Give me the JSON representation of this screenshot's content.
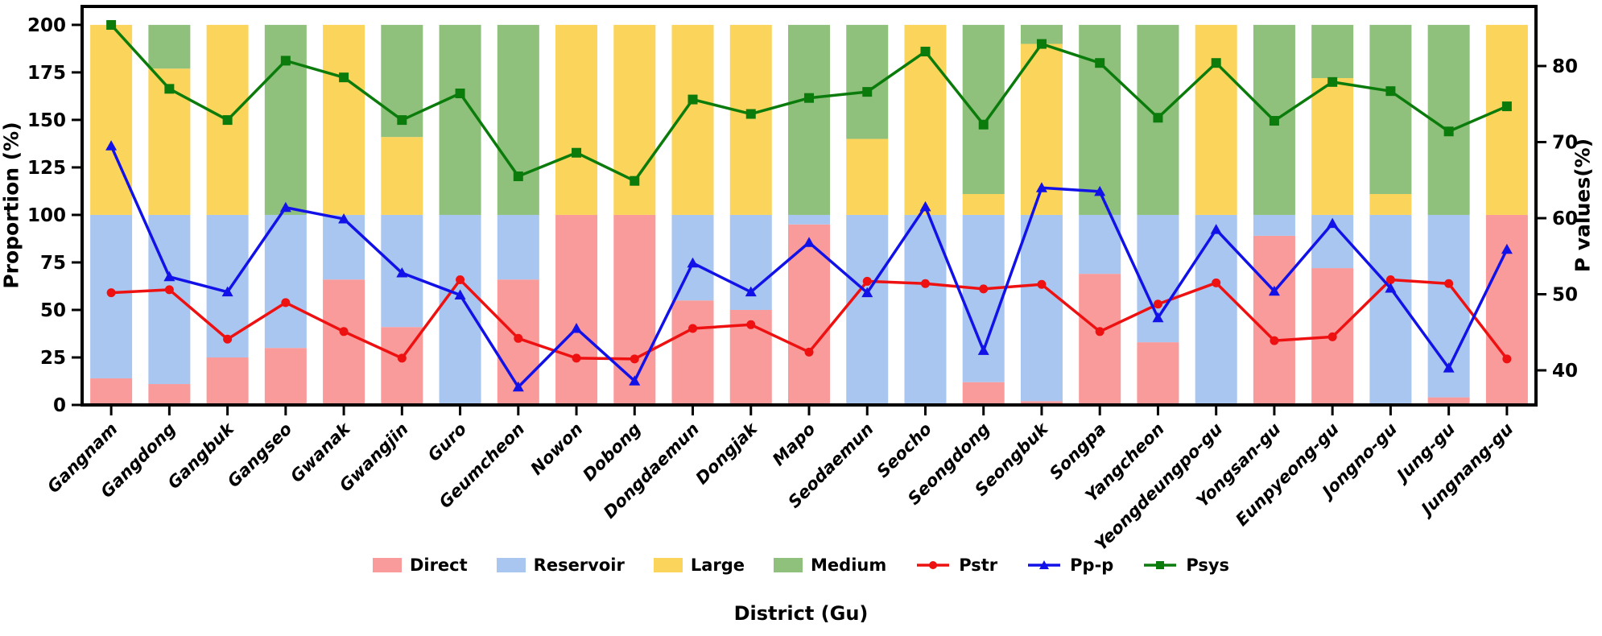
{
  "chart_data": {
    "type": "bar+line",
    "title": "",
    "xlabel": "District (Gu)",
    "ylabel_left": "Proportion (%)",
    "ylabel_right": "P values(%)",
    "legend_position": "bottom-center",
    "grid": false,
    "categories": [
      "Gangnam",
      "Gangdong",
      "Gangbuk",
      "Gangseo",
      "Gwanak",
      "Gwangjin",
      "Guro",
      "Geumcheon",
      "Nowon",
      "Dobong",
      "Dongdaemun",
      "Dongjak",
      "Mapo",
      "Seodaemun",
      "Seocho",
      "Seongdong",
      "Seongbuk",
      "Songpa",
      "Yangcheon",
      "Yeongdeungpo-gu",
      "Yongsan-gu",
      "Eunpyeong-gu",
      "Jongno-gu",
      "Jung-gu",
      "Jungnang-gu"
    ],
    "bar_series": [
      {
        "name": "Direct",
        "color": "#FA9B9B",
        "stack": "lower",
        "values": [
          14,
          11,
          25,
          30,
          66,
          41,
          0,
          66,
          100,
          100,
          55,
          50,
          95,
          0,
          0,
          12,
          2,
          69,
          33,
          0,
          89,
          72,
          0,
          4,
          100
        ]
      },
      {
        "name": "Reservoir",
        "color": "#A9C6F0",
        "stack": "lower",
        "values": [
          86,
          89,
          75,
          70,
          34,
          59,
          100,
          34,
          0,
          0,
          45,
          50,
          5,
          100,
          100,
          88,
          98,
          31,
          67,
          100,
          11,
          28,
          100,
          96,
          0
        ]
      },
      {
        "name": "Large",
        "color": "#FBD45C",
        "stack": "upper",
        "values": [
          100,
          77,
          100,
          0,
          100,
          41,
          0,
          0,
          100,
          100,
          100,
          100,
          0,
          40,
          100,
          11,
          90,
          0,
          0,
          100,
          0,
          72,
          11,
          0,
          100
        ]
      },
      {
        "name": "Medium",
        "color": "#8FC17D",
        "stack": "upper",
        "values": [
          0,
          23,
          0,
          100,
          0,
          59,
          100,
          100,
          0,
          0,
          0,
          0,
          100,
          60,
          0,
          89,
          10,
          100,
          100,
          0,
          100,
          28,
          89,
          100,
          0
        ]
      }
    ],
    "line_series": [
      {
        "name": "Pstr",
        "color": "#EE1111",
        "marker": "circle",
        "axis": "right",
        "values": [
          50.2,
          50.6,
          44.1,
          48.9,
          45.1,
          41.6,
          51.9,
          44.2,
          41.6,
          41.5,
          45.5,
          46.0,
          42.4,
          51.7,
          51.4,
          50.7,
          51.3,
          45.1,
          48.7,
          51.5,
          43.9,
          44.4,
          51.9,
          51.4,
          41.5
        ]
      },
      {
        "name": "Pp-p",
        "color": "#1212E8",
        "marker": "triangle",
        "axis": "right",
        "values": [
          69.5,
          52.3,
          50.3,
          61.4,
          59.9,
          52.8,
          49.9,
          37.8,
          45.5,
          38.6,
          54.1,
          50.3,
          56.8,
          50.2,
          61.5,
          42.6,
          64.0,
          63.5,
          46.9,
          58.5,
          50.4,
          59.3,
          50.8,
          40.3,
          55.9
        ]
      },
      {
        "name": "Psys",
        "color": "#0B7C0B",
        "marker": "square",
        "axis": "right",
        "values": [
          85.4,
          77.0,
          72.9,
          80.7,
          78.5,
          72.9,
          76.4,
          65.5,
          68.6,
          64.9,
          75.6,
          73.7,
          75.8,
          76.6,
          81.9,
          72.3,
          82.9,
          80.4,
          73.2,
          80.4,
          72.8,
          77.9,
          76.7,
          71.4,
          74.7
        ]
      }
    ],
    "left_axis": {
      "ticks": [
        0,
        25,
        50,
        75,
        100,
        125,
        150,
        175,
        200
      ],
      "range": [
        0,
        209.7
      ]
    },
    "right_axis": {
      "ticks": [
        40,
        50,
        60,
        70,
        80
      ],
      "range": [
        35.45,
        87.83
      ]
    },
    "upper_stack_base": 100,
    "lower_stack_base": 0
  }
}
